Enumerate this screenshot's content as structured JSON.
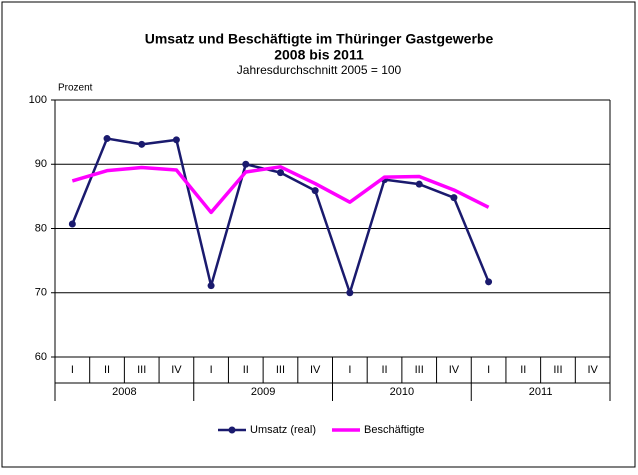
{
  "chart_data": {
    "type": "line",
    "title": "Umsatz und Beschäftigte im Thüringer Gastgewerbe",
    "subtitle_bold": "2008 bis 2011",
    "subtitle": "Jahresdurchschnitt 2005 = 100",
    "y_label": "Prozent",
    "categories": [
      "I",
      "II",
      "III",
      "IV",
      "I",
      "II",
      "III",
      "IV",
      "I",
      "II",
      "III",
      "IV",
      "I",
      "II",
      "III",
      "IV"
    ],
    "years": [
      "2008",
      "2009",
      "2010",
      "2011"
    ],
    "series": [
      {
        "name": "Umsatz (real)",
        "color": "#1a1a6e",
        "marker": true,
        "values": [
          80.7,
          94,
          93.1,
          93.8,
          71.1,
          90,
          88.7,
          85.9,
          70,
          87.6,
          86.9,
          84.8,
          71.7,
          null,
          null,
          null
        ]
      },
      {
        "name": "Beschäftigte",
        "color": "#ff00ff",
        "marker": false,
        "values": [
          87.4,
          89,
          89.5,
          89.1,
          82.5,
          88.8,
          89.6,
          87,
          84.1,
          88,
          88.1,
          86,
          83.3,
          null,
          null,
          null
        ]
      }
    ],
    "ylim": [
      60,
      100
    ],
    "yticks": [
      60,
      70,
      80,
      90,
      100
    ],
    "grid": true
  }
}
